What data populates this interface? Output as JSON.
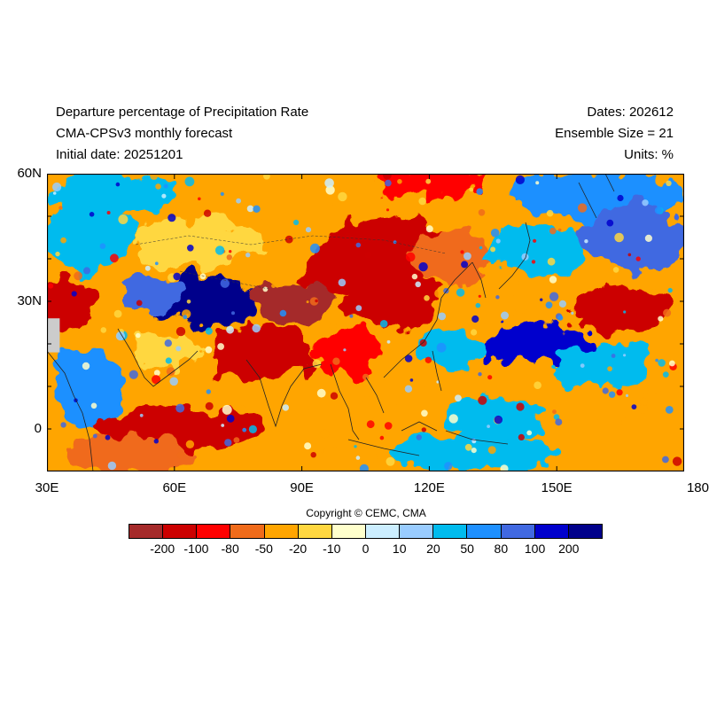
{
  "header": {
    "title": "Departure percentage of Precipitation Rate",
    "subtitle": "CMA-CPSv3 monthly forecast",
    "initial_date": "Initial date: 20251201",
    "dates": "Dates: 202612",
    "ensemble": "Ensemble Size = 21",
    "units": "Units: %"
  },
  "map": {
    "lon_range": [
      30,
      180
    ],
    "lat_range": [
      -10,
      60
    ],
    "x_ticks": [
      "30E",
      "60E",
      "90E",
      "120E",
      "150E",
      "180"
    ],
    "x_tick_values": [
      30,
      60,
      90,
      120,
      150,
      180
    ],
    "y_ticks": [
      "60N",
      "30N",
      "0"
    ],
    "y_tick_values": [
      60,
      30,
      0
    ]
  },
  "colorbar": {
    "labels": [
      "-200",
      "-100",
      "-80",
      "-50",
      "-20",
      "-10",
      "0",
      "10",
      "20",
      "50",
      "80",
      "100",
      "200"
    ],
    "colors": [
      "#a52a2a",
      "#cc0000",
      "#ff0000",
      "#f06b1a",
      "#ffa500",
      "#ffd740",
      "#ffffcc",
      "#cceeff",
      "#99ccff",
      "#00bbee",
      "#1e90ff",
      "#4169e1",
      "#0000cd",
      "#00008b"
    ]
  },
  "copyright": "Copyright © CEMC, CMA",
  "regions": [
    {
      "lon": 45,
      "lat": 55,
      "rx": 15,
      "ry": 5,
      "c": 9
    },
    {
      "lon": 80,
      "lat": 55,
      "rx": 20,
      "ry": 6,
      "c": 4
    },
    {
      "lon": 120,
      "lat": 58,
      "rx": 12,
      "ry": 4,
      "c": 2
    },
    {
      "lon": 160,
      "lat": 55,
      "rx": 20,
      "ry": 6,
      "c": 10
    },
    {
      "lon": 40,
      "lat": 45,
      "rx": 10,
      "ry": 8,
      "c": 9
    },
    {
      "lon": 65,
      "lat": 44,
      "rx": 15,
      "ry": 6,
      "c": 5
    },
    {
      "lon": 110,
      "lat": 42,
      "rx": 15,
      "ry": 8,
      "c": 1
    },
    {
      "lon": 100,
      "lat": 38,
      "rx": 10,
      "ry": 6,
      "c": 1
    },
    {
      "lon": 125,
      "lat": 40,
      "rx": 10,
      "ry": 6,
      "c": 3
    },
    {
      "lon": 145,
      "lat": 42,
      "rx": 12,
      "ry": 6,
      "c": 9
    },
    {
      "lon": 168,
      "lat": 45,
      "rx": 12,
      "ry": 8,
      "c": 11
    },
    {
      "lon": 68,
      "lat": 30,
      "rx": 12,
      "ry": 6,
      "c": 13
    },
    {
      "lon": 55,
      "lat": 32,
      "rx": 8,
      "ry": 4,
      "c": 11
    },
    {
      "lon": 35,
      "lat": 30,
      "rx": 7,
      "ry": 6,
      "c": 1
    },
    {
      "lon": 88,
      "lat": 30,
      "rx": 10,
      "ry": 5,
      "c": 0
    },
    {
      "lon": 112,
      "lat": 30,
      "rx": 12,
      "ry": 6,
      "c": 1
    },
    {
      "lon": 132,
      "lat": 30,
      "rx": 10,
      "ry": 5,
      "c": 4
    },
    {
      "lon": 165,
      "lat": 28,
      "rx": 12,
      "ry": 6,
      "c": 1
    },
    {
      "lon": 145,
      "lat": 20,
      "rx": 14,
      "ry": 5,
      "c": 12
    },
    {
      "lon": 160,
      "lat": 15,
      "rx": 12,
      "ry": 5,
      "c": 9
    },
    {
      "lon": 80,
      "lat": 18,
      "rx": 12,
      "ry": 7,
      "c": 1
    },
    {
      "lon": 100,
      "lat": 18,
      "rx": 8,
      "ry": 6,
      "c": 2
    },
    {
      "lon": 115,
      "lat": 15,
      "rx": 8,
      "ry": 5,
      "c": 4
    },
    {
      "lon": 125,
      "lat": 18,
      "rx": 8,
      "ry": 4,
      "c": 9
    },
    {
      "lon": 40,
      "lat": 10,
      "rx": 8,
      "ry": 10,
      "c": 10
    },
    {
      "lon": 58,
      "lat": 18,
      "rx": 8,
      "ry": 5,
      "c": 5
    },
    {
      "lon": 60,
      "lat": 0,
      "rx": 20,
      "ry": 5,
      "c": 1
    },
    {
      "lon": 95,
      "lat": 0,
      "rx": 12,
      "ry": 5,
      "c": 4
    },
    {
      "lon": 110,
      "lat": 0,
      "rx": 10,
      "ry": 6,
      "c": 4
    },
    {
      "lon": 135,
      "lat": 2,
      "rx": 12,
      "ry": 5,
      "c": 9
    },
    {
      "lon": 160,
      "lat": 5,
      "rx": 15,
      "ry": 4,
      "c": 4
    },
    {
      "lon": 50,
      "lat": -6,
      "rx": 15,
      "ry": 4,
      "c": 3
    },
    {
      "lon": 130,
      "lat": -6,
      "rx": 20,
      "ry": 4,
      "c": 9
    }
  ],
  "landmask": [
    {
      "lon": 31,
      "lat": 22,
      "rx": 2,
      "ry": 4,
      "c": "#cccccc"
    }
  ]
}
